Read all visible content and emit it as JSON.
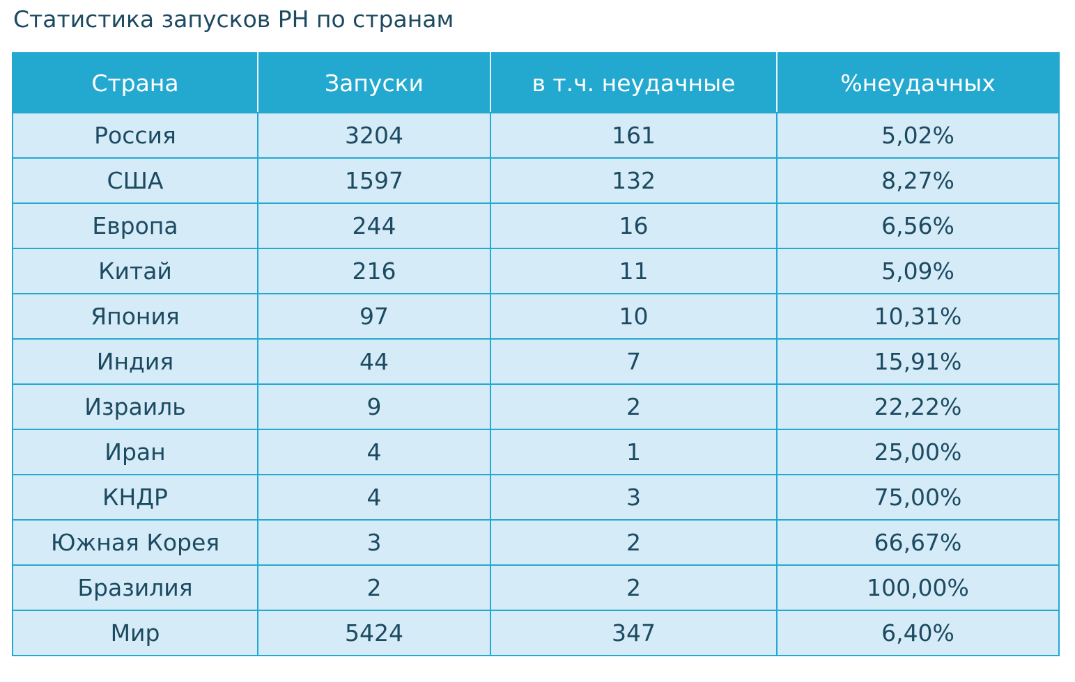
{
  "title": "Статистика запусков РН по странам",
  "table": {
    "columns": [
      "Страна",
      "Запуски",
      "в т.ч. неудачные",
      "%неудачных"
    ],
    "rows": [
      [
        "Россия",
        "3204",
        "161",
        "5,02%"
      ],
      [
        "США",
        "1597",
        "132",
        "8,27%"
      ],
      [
        "Европа",
        "244",
        "16",
        "6,56%"
      ],
      [
        "Китай",
        "216",
        "11",
        "5,09%"
      ],
      [
        "Япония",
        "97",
        "10",
        "10,31%"
      ],
      [
        "Индия",
        "44",
        "7",
        "15,91%"
      ],
      [
        "Израиль",
        "9",
        "2",
        "22,22%"
      ],
      [
        "Иран",
        "4",
        "1",
        "25,00%"
      ],
      [
        "КНДР",
        "4",
        "3",
        "75,00%"
      ],
      [
        "Южная Корея",
        "3",
        "2",
        "66,67%"
      ],
      [
        "Бразилия",
        "2",
        "2",
        "100,00%"
      ],
      [
        "Мир",
        "5424",
        "347",
        "6,40%"
      ]
    ]
  },
  "colors": {
    "header_bg": "#23a9d0",
    "row_bg": "#d5ebf8",
    "text": "#1c4a60"
  }
}
